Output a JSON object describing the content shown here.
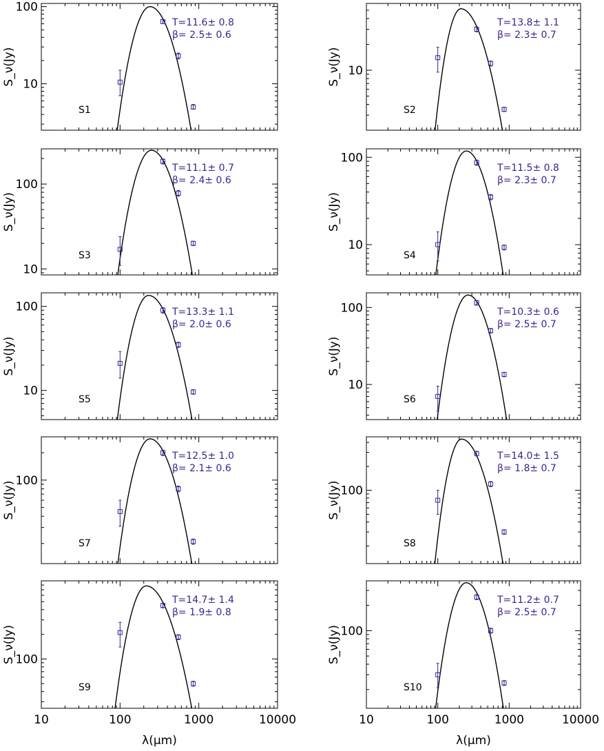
{
  "colors": {
    "axis": "#000000",
    "fit": "#000000",
    "data": "#3d1f8f",
    "annotation": "#3d1f8f"
  },
  "chart_data": [
    {
      "type": "scatter",
      "panel": "S1",
      "label": "S1",
      "xscale": "log",
      "yscale": "log",
      "xlim": [
        10,
        10000
      ],
      "ylim": [
        2.5,
        110
      ],
      "xticks": [
        10,
        100,
        1000,
        10000
      ],
      "xticklabels": [
        "10",
        "100",
        "1000",
        "10000"
      ],
      "yticks": [
        10,
        100
      ],
      "yticklabels": [
        "10",
        "100"
      ],
      "ylabel": "S_ν(Jy)",
      "xlabel": "",
      "T": "11.6± 0.8",
      "beta": "2.5± 0.6",
      "points": [
        {
          "x": 100,
          "y": 10.5,
          "ylo": 7.0,
          "yhi": 15.0
        },
        {
          "x": 350,
          "y": 64,
          "ylo": 60,
          "yhi": 68
        },
        {
          "x": 550,
          "y": 23,
          "ylo": 21,
          "yhi": 25
        },
        {
          "x": 850,
          "y": 5.0,
          "ylo": 4.7,
          "yhi": 5.4
        }
      ],
      "fit": {
        "peak_x": 240,
        "peak_y": 100,
        "x_min": 80,
        "x_max": 950
      }
    },
    {
      "type": "scatter",
      "panel": "S2",
      "label": "S2",
      "xscale": "log",
      "yscale": "log",
      "xlim": [
        10,
        10000
      ],
      "ylim": [
        2,
        60
      ],
      "xticks": [
        10,
        100,
        1000,
        10000
      ],
      "xticklabels": [
        "10",
        "100",
        "1000",
        "10000"
      ],
      "yticks": [
        10
      ],
      "yticklabels": [
        "10"
      ],
      "ylabel": "S_ν(Jy)",
      "xlabel": "",
      "T": "13.8± 1.1",
      "beta": "2.3± 0.7",
      "points": [
        {
          "x": 100,
          "y": 14,
          "ylo": 9.5,
          "yhi": 18.5
        },
        {
          "x": 350,
          "y": 30,
          "ylo": 28,
          "yhi": 32
        },
        {
          "x": 550,
          "y": 12,
          "ylo": 11.2,
          "yhi": 12.8
        },
        {
          "x": 850,
          "y": 3.5,
          "ylo": 3.3,
          "yhi": 3.7
        }
      ],
      "fit": {
        "peak_x": 210,
        "peak_y": 52,
        "x_min": 80,
        "x_max": 1000
      }
    },
    {
      "type": "scatter",
      "panel": "S3",
      "label": "S3",
      "xscale": "log",
      "yscale": "log",
      "xlim": [
        10,
        10000
      ],
      "ylim": [
        8.5,
        260
      ],
      "xticks": [
        10,
        100,
        1000,
        10000
      ],
      "xticklabels": [
        "10",
        "100",
        "1000",
        "10000"
      ],
      "yticks": [
        10,
        100
      ],
      "yticklabels": [
        "10",
        "100"
      ],
      "ylabel": "S_ν(Jy)",
      "xlabel": "",
      "T": "11.1± 0.7",
      "beta": "2.4± 0.6",
      "points": [
        {
          "x": 100,
          "y": 17,
          "ylo": 11,
          "yhi": 24
        },
        {
          "x": 350,
          "y": 185,
          "ylo": 172,
          "yhi": 198
        },
        {
          "x": 550,
          "y": 78,
          "ylo": 72,
          "yhi": 84
        },
        {
          "x": 850,
          "y": 20,
          "ylo": 18.8,
          "yhi": 21.2
        }
      ],
      "fit": {
        "peak_x": 250,
        "peak_y": 250,
        "x_min": 80,
        "x_max": 1000
      }
    },
    {
      "type": "scatter",
      "panel": "S4",
      "label": "S4",
      "xscale": "log",
      "yscale": "log",
      "xlim": [
        10,
        10000
      ],
      "ylim": [
        4.5,
        125
      ],
      "xticks": [
        10,
        100,
        1000,
        10000
      ],
      "xticklabels": [
        "10",
        "100",
        "1000",
        "10000"
      ],
      "yticks": [
        10,
        100
      ],
      "yticklabels": [
        "10",
        "100"
      ],
      "ylabel": "S_ν(Jy)",
      "xlabel": "",
      "T": "11.5± 0.8",
      "beta": "2.3± 0.7",
      "points": [
        {
          "x": 100,
          "y": 10,
          "ylo": 6.5,
          "yhi": 14
        },
        {
          "x": 350,
          "y": 87,
          "ylo": 81,
          "yhi": 93
        },
        {
          "x": 550,
          "y": 35,
          "ylo": 32.5,
          "yhi": 37.5
        },
        {
          "x": 850,
          "y": 9.3,
          "ylo": 8.7,
          "yhi": 9.9
        }
      ],
      "fit": {
        "peak_x": 250,
        "peak_y": 118,
        "x_min": 80,
        "x_max": 1000
      }
    },
    {
      "type": "scatter",
      "panel": "S5",
      "label": "S5",
      "xscale": "log",
      "yscale": "log",
      "xlim": [
        10,
        10000
      ],
      "ylim": [
        4.5,
        145
      ],
      "xticks": [
        10,
        100,
        1000,
        10000
      ],
      "xticklabels": [
        "10",
        "100",
        "1000",
        "10000"
      ],
      "yticks": [
        10,
        100
      ],
      "yticklabels": [
        "10",
        "100"
      ],
      "ylabel": "S_ν(Jy)",
      "xlabel": "",
      "T": "13.3± 1.1",
      "beta": "2.0± 0.6",
      "points": [
        {
          "x": 100,
          "y": 21,
          "ylo": 14,
          "yhi": 29
        },
        {
          "x": 350,
          "y": 90,
          "ylo": 83,
          "yhi": 97
        },
        {
          "x": 550,
          "y": 35,
          "ylo": 32.5,
          "yhi": 37.5
        },
        {
          "x": 850,
          "y": 9.6,
          "ylo": 9.0,
          "yhi": 10.2
        }
      ],
      "fit": {
        "peak_x": 230,
        "peak_y": 135,
        "x_min": 80,
        "x_max": 1000
      }
    },
    {
      "type": "scatter",
      "panel": "S6",
      "label": "S6",
      "xscale": "log",
      "yscale": "log",
      "xlim": [
        10,
        10000
      ],
      "ylim": [
        3.5,
        155
      ],
      "xticks": [
        10,
        100,
        1000,
        10000
      ],
      "xticklabels": [
        "10",
        "100",
        "1000",
        "10000"
      ],
      "yticks": [
        10,
        100
      ],
      "yticklabels": [
        "10",
        "100"
      ],
      "ylabel": "S_ν(Jy)",
      "xlabel": "",
      "T": "10.3± 0.6",
      "beta": "2.5± 0.7",
      "points": [
        {
          "x": 100,
          "y": 7,
          "ylo": 4.5,
          "yhi": 9.5
        },
        {
          "x": 350,
          "y": 115,
          "ylo": 107,
          "yhi": 123
        },
        {
          "x": 550,
          "y": 50,
          "ylo": 46.5,
          "yhi": 53.5
        },
        {
          "x": 850,
          "y": 13.5,
          "ylo": 12.6,
          "yhi": 14.4
        }
      ],
      "fit": {
        "peak_x": 265,
        "peak_y": 145,
        "x_min": 85,
        "x_max": 1100
      }
    },
    {
      "type": "scatter",
      "panel": "S7",
      "label": "S7",
      "xscale": "log",
      "yscale": "log",
      "xlim": [
        10,
        10000
      ],
      "ylim": [
        12,
        300
      ],
      "xticks": [
        10,
        100,
        1000,
        10000
      ],
      "xticklabels": [
        "10",
        "100",
        "1000",
        "10000"
      ],
      "yticks": [
        100
      ],
      "yticklabels": [
        "100"
      ],
      "ylabel": "S_ν(Jy)",
      "xlabel": "",
      "T": "12.5± 1.0",
      "beta": "2.1± 0.6",
      "points": [
        {
          "x": 100,
          "y": 45,
          "ylo": 31,
          "yhi": 60
        },
        {
          "x": 350,
          "y": 200,
          "ylo": 186,
          "yhi": 214
        },
        {
          "x": 550,
          "y": 80,
          "ylo": 74,
          "yhi": 86
        },
        {
          "x": 850,
          "y": 21,
          "ylo": 19.6,
          "yhi": 22.4
        }
      ],
      "fit": {
        "peak_x": 240,
        "peak_y": 285,
        "x_min": 80,
        "x_max": 1000
      }
    },
    {
      "type": "scatter",
      "panel": "S8",
      "label": "S8",
      "xscale": "log",
      "yscale": "log",
      "xlim": [
        10,
        10000
      ],
      "ylim": [
        12,
        470
      ],
      "xticks": [
        10,
        100,
        1000,
        10000
      ],
      "xticklabels": [
        "10",
        "100",
        "1000",
        "10000"
      ],
      "yticks": [
        100
      ],
      "yticklabels": [
        "100"
      ],
      "ylabel": "S_ν(Jy)",
      "xlabel": "",
      "T": "14.0± 1.5",
      "beta": "1.8± 0.7",
      "points": [
        {
          "x": 100,
          "y": 75,
          "ylo": 50,
          "yhi": 100
        },
        {
          "x": 350,
          "y": 290,
          "ylo": 270,
          "yhi": 310
        },
        {
          "x": 550,
          "y": 120,
          "ylo": 111,
          "yhi": 129
        },
        {
          "x": 850,
          "y": 30,
          "ylo": 28,
          "yhi": 32
        }
      ],
      "fit": {
        "peak_x": 215,
        "peak_y": 440,
        "x_min": 80,
        "x_max": 1000
      }
    },
    {
      "type": "scatter",
      "panel": "S9",
      "label": "S9",
      "xscale": "log",
      "yscale": "log",
      "xlim": [
        10,
        10000
      ],
      "ylim": [
        25,
        900
      ],
      "xticks": [
        10,
        100,
        1000,
        10000
      ],
      "xticklabels": [
        "10",
        "100",
        "1000",
        "10000"
      ],
      "yticks": [
        100
      ],
      "yticklabels": [
        "100"
      ],
      "ylabel": "S_ν(Jy)",
      "xlabel": "λ(μm)",
      "T": "14.7± 1.4",
      "beta": "1.9± 0.8",
      "points": [
        {
          "x": 100,
          "y": 210,
          "ylo": 140,
          "yhi": 280
        },
        {
          "x": 350,
          "y": 450,
          "ylo": 420,
          "yhi": 480
        },
        {
          "x": 550,
          "y": 185,
          "ylo": 172,
          "yhi": 198
        },
        {
          "x": 850,
          "y": 50,
          "ylo": 46.5,
          "yhi": 53.5
        }
      ],
      "fit": {
        "peak_x": 215,
        "peak_y": 780,
        "x_min": 75,
        "x_max": 1000
      }
    },
    {
      "type": "scatter",
      "panel": "S10",
      "label": "S10",
      "xscale": "log",
      "yscale": "log",
      "xlim": [
        10,
        10000
      ],
      "ylim": [
        12,
        390
      ],
      "xticks": [
        10,
        100,
        1000,
        10000
      ],
      "xticklabels": [
        "10",
        "100",
        "1000",
        "10000"
      ],
      "yticks": [
        100
      ],
      "yticklabels": [
        "100"
      ],
      "ylabel": "S_ν(Jy)",
      "xlabel": "λ(μm)",
      "T": "11.2± 0.7",
      "beta": "2.5± 0.7",
      "points": [
        {
          "x": 100,
          "y": 30,
          "ylo": 21,
          "yhi": 41
        },
        {
          "x": 350,
          "y": 250,
          "ylo": 233,
          "yhi": 267
        },
        {
          "x": 550,
          "y": 100,
          "ylo": 93,
          "yhi": 107
        },
        {
          "x": 850,
          "y": 24,
          "ylo": 22.4,
          "yhi": 25.6
        }
      ],
      "fit": {
        "peak_x": 250,
        "peak_y": 370,
        "x_min": 80,
        "x_max": 1000
      }
    }
  ]
}
